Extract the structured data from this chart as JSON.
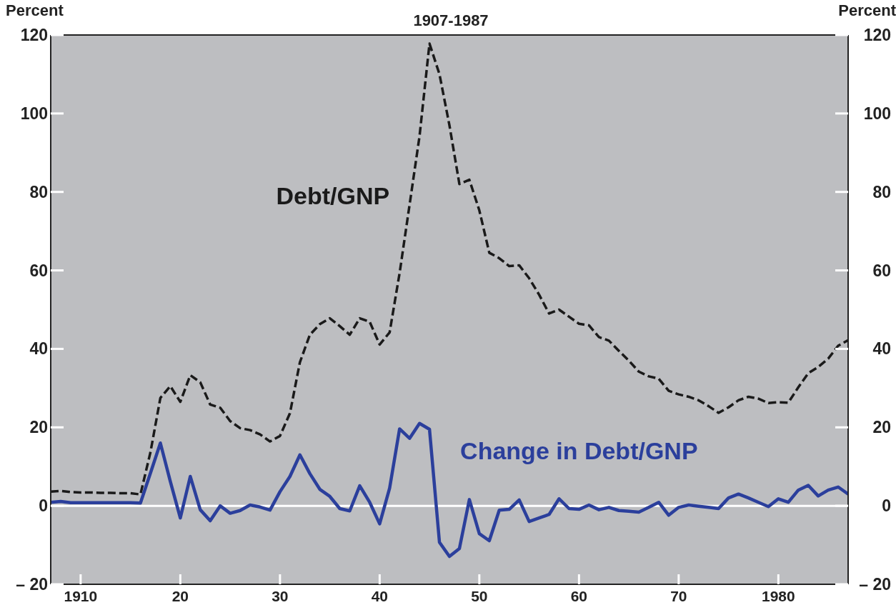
{
  "chart_data": {
    "type": "line",
    "title": "1907-1987",
    "ylabel": "Percent",
    "y2label": "Percent",
    "x": [
      1907,
      1908,
      1909,
      1910,
      1911,
      1912,
      1913,
      1914,
      1915,
      1916,
      1917,
      1918,
      1919,
      1920,
      1921,
      1922,
      1923,
      1924,
      1925,
      1926,
      1927,
      1928,
      1929,
      1930,
      1931,
      1932,
      1933,
      1934,
      1935,
      1936,
      1937,
      1938,
      1939,
      1940,
      1941,
      1942,
      1943,
      1944,
      1945,
      1946,
      1947,
      1948,
      1949,
      1950,
      1951,
      1952,
      1953,
      1954,
      1955,
      1956,
      1957,
      1958,
      1959,
      1960,
      1961,
      1962,
      1963,
      1964,
      1965,
      1966,
      1967,
      1968,
      1969,
      1970,
      1971,
      1972,
      1973,
      1974,
      1975,
      1976,
      1977,
      1978,
      1979,
      1980,
      1981,
      1982,
      1983,
      1984,
      1985,
      1986,
      1987
    ],
    "series": [
      {
        "name": "Debt/GNP",
        "color": "#1a1a1a",
        "line_style": "dashed",
        "values": [
          3.6,
          3.8,
          3.5,
          3.4,
          3.4,
          3.3,
          3.3,
          3.2,
          3.2,
          2.9,
          13.6,
          27.5,
          30.5,
          26.5,
          33.3,
          31.5,
          25.8,
          25,
          21.6,
          19.8,
          19.3,
          18.2,
          16.4,
          17.8,
          23.6,
          36.6,
          43.6,
          46.3,
          47.8,
          45.8,
          43.6,
          47.8,
          46.9,
          41.1,
          44.2,
          59.3,
          76.7,
          94.2,
          117.8,
          110,
          97,
          82,
          83.1,
          75.3,
          64.5,
          63.1,
          61.1,
          61.3,
          58,
          53.8,
          49,
          50,
          48.2,
          46.4,
          46,
          43,
          42.1,
          39.5,
          37,
          34.2,
          33,
          32.4,
          29.3,
          28.4,
          27.8,
          26.9,
          25.4,
          23.7,
          25.1,
          26.9,
          27.8,
          27.3,
          26.2,
          26.4,
          26.3,
          30.2,
          33.8,
          35.4,
          37.5,
          40.8,
          42.2
        ]
      },
      {
        "name": "Change in Debt/GNP",
        "color": "#2b3f9c",
        "line_style": "solid",
        "values": [
          0.9,
          1.1,
          0.8,
          0.8,
          0.8,
          0.8,
          0.8,
          0.8,
          0.8,
          0.7,
          8.3,
          16,
          6.2,
          -3.1,
          7.5,
          -1,
          -3.8,
          0,
          -1.9,
          -1.2,
          0.2,
          -0.3,
          -1.1,
          3.6,
          7.5,
          13,
          8.2,
          4.2,
          2.4,
          -0.7,
          -1.3,
          5.1,
          0.9,
          -4.6,
          4.5,
          19.6,
          17.2,
          21,
          19.5,
          -9.3,
          -12.9,
          -10.9,
          1.6,
          -7.1,
          -8.9,
          -1.1,
          -0.9,
          1.5,
          -4,
          -3.1,
          -2.2,
          1.8,
          -0.7,
          -0.9,
          0.2,
          -1,
          -0.4,
          -1.2,
          -1.4,
          -1.6,
          -0.4,
          0.9,
          -2.4,
          -0.4,
          0.2,
          -0.1,
          -0.4,
          -0.7,
          2,
          3,
          2,
          0.9,
          -0.2,
          1.8,
          0.9,
          4,
          5.2,
          2.5,
          4,
          4.8,
          3
        ]
      }
    ],
    "xlim": [
      1907,
      1987
    ],
    "xticks": [
      {
        "value": 1910,
        "label": "1910"
      },
      {
        "value": 1920,
        "label": "20"
      },
      {
        "value": 1930,
        "label": "30"
      },
      {
        "value": 1940,
        "label": "40"
      },
      {
        "value": 1950,
        "label": "50"
      },
      {
        "value": 1960,
        "label": "60"
      },
      {
        "value": 1970,
        "label": "70"
      },
      {
        "value": 1980,
        "label": "1980"
      }
    ],
    "ylim": [
      -20,
      120
    ],
    "yticks": [
      {
        "value": -20,
        "label": "– 20"
      },
      0,
      20,
      40,
      60,
      80,
      100,
      120
    ],
    "y2lim": [
      -20,
      120
    ],
    "y2ticks": [
      {
        "value": -20,
        "label": "– 20"
      },
      0,
      20,
      40,
      60,
      80,
      100,
      120
    ],
    "ref_lines": [
      {
        "axis": "y",
        "value": 0,
        "color": "#ffffff"
      }
    ],
    "legend": false,
    "marker": "none"
  }
}
